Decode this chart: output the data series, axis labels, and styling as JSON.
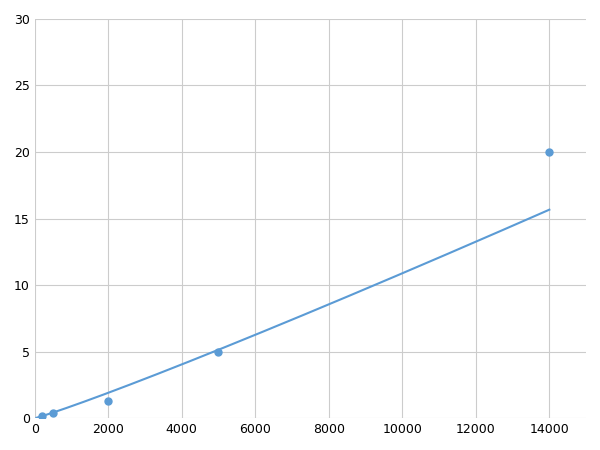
{
  "x": [
    200,
    500,
    2000,
    5000,
    14000
  ],
  "y": [
    0.2,
    0.4,
    1.3,
    5.0,
    20.0
  ],
  "line_color": "#5b9bd5",
  "marker_color": "#5b9bd5",
  "marker_size": 5,
  "marker_style": "o",
  "linewidth": 1.5,
  "xlim": [
    0,
    15000
  ],
  "ylim": [
    0,
    30
  ],
  "xticks": [
    0,
    2000,
    4000,
    6000,
    8000,
    10000,
    12000,
    14000
  ],
  "yticks": [
    0,
    5,
    10,
    15,
    20,
    25,
    30
  ],
  "grid": true,
  "grid_color": "#cccccc",
  "grid_linewidth": 0.8,
  "background_color": "#ffffff",
  "spines_visible": false
}
